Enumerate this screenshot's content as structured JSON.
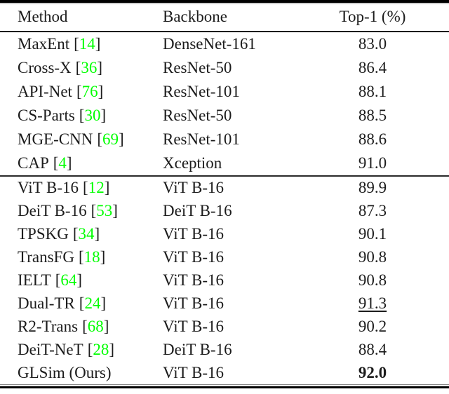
{
  "table": {
    "headers": {
      "method": "Method",
      "backbone": "Backbone",
      "top1": "Top-1 (%)"
    },
    "cite_brackets": {
      "open": "[",
      "close": "]"
    },
    "colors": {
      "citation": "#00ff00",
      "text": "#1c1c1c",
      "rule": "#000000"
    },
    "rows": [
      {
        "method": "MaxEnt",
        "cite": "14",
        "backbone": "DenseNet-161",
        "top1": "83.0",
        "top1_style": "normal"
      },
      {
        "method": "Cross-X",
        "cite": "36",
        "backbone": "ResNet-50",
        "top1": "86.4",
        "top1_style": "normal"
      },
      {
        "method": "API-Net",
        "cite": "76",
        "backbone": "ResNet-101",
        "top1": "88.1",
        "top1_style": "normal"
      },
      {
        "method": "CS-Parts",
        "cite": "30",
        "backbone": "ResNet-50",
        "top1": "88.5",
        "top1_style": "normal"
      },
      {
        "method": "MGE-CNN",
        "cite": "69",
        "backbone": "ResNet-101",
        "top1": "88.6",
        "top1_style": "normal"
      },
      {
        "method": "CAP",
        "cite": "4",
        "backbone": "Xception",
        "top1": "91.0",
        "top1_style": "normal"
      },
      {
        "method": "ViT B-16",
        "cite": "12",
        "backbone": "ViT B-16",
        "top1": "89.9",
        "top1_style": "normal"
      },
      {
        "method": "DeiT B-16",
        "cite": "53",
        "backbone": "DeiT B-16",
        "top1": "87.3",
        "top1_style": "normal"
      },
      {
        "method": "TPSKG",
        "cite": "34",
        "backbone": "ViT B-16",
        "top1": "90.1",
        "top1_style": "normal"
      },
      {
        "method": "TransFG",
        "cite": "18",
        "backbone": "ViT B-16",
        "top1": "90.8",
        "top1_style": "normal"
      },
      {
        "method": "IELT",
        "cite": "64",
        "backbone": "ViT B-16",
        "top1": "90.8",
        "top1_style": "normal"
      },
      {
        "method": "Dual-TR",
        "cite": "24",
        "backbone": "ViT B-16",
        "top1": "91.3",
        "top1_style": "underline"
      },
      {
        "method": "R2-Trans",
        "cite": "68",
        "backbone": "ViT B-16",
        "top1": "90.2",
        "top1_style": "normal"
      },
      {
        "method": "DeiT-NeT",
        "cite": "28",
        "backbone": "DeiT B-16",
        "top1": "88.4",
        "top1_style": "normal"
      },
      {
        "method": "GLSim (Ours)",
        "cite": null,
        "backbone": "ViT B-16",
        "top1": "92.0",
        "top1_style": "bold"
      }
    ]
  }
}
